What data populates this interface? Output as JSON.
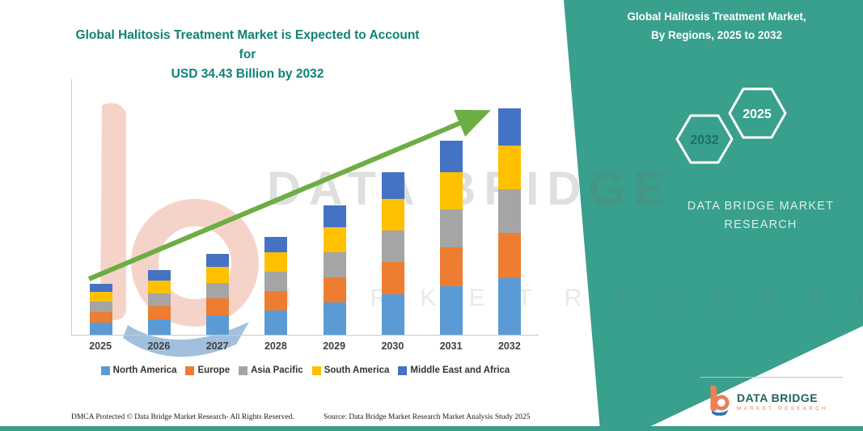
{
  "title": {
    "line1": "Global Halitosis Treatment Market is Expected to Account for",
    "line2": "USD 34.43 Billion by 2032"
  },
  "side_panel": {
    "heading_line1": "Global Halitosis Treatment Market,",
    "heading_line2": "By Regions, 2025 to 2032",
    "hex_back_label": "2032",
    "hex_front_label": "2025",
    "brand_line1": "DATA BRIDGE MARKET",
    "brand_line2": "RESEARCH",
    "panel_color": "#38A08C"
  },
  "watermark": {
    "line1": "DATA BRIDGE",
    "line2": "M A R K E T   R E S E A R C H"
  },
  "brand_logo": {
    "name": "DATA BRIDGE",
    "subtitle": "MARKET RESEARCH"
  },
  "footer": {
    "dmca": "DMCA Protected © Data Bridge Market Research-  All Rights Reserved.",
    "source": "Source: Data Bridge Market Research  Market Analysis Study 2025"
  },
  "chart_data": {
    "type": "bar",
    "stacked": true,
    "title": "Global Halitosis Treatment Market is Expected to Account for USD 34.43 Billion by 2032",
    "unit": "USD Billion",
    "categories": [
      "2025",
      "2026",
      "2027",
      "2028",
      "2029",
      "2030",
      "2031",
      "2032"
    ],
    "series": [
      {
        "name": "North America",
        "color": "#5B9BD5",
        "values": [
          1.9,
          2.4,
          3.0,
          3.7,
          4.9,
          6.2,
          7.4,
          8.6
        ]
      },
      {
        "name": "Europe",
        "color": "#ED7D31",
        "values": [
          1.6,
          2.0,
          2.5,
          3.0,
          3.9,
          4.9,
          5.9,
          6.9
        ]
      },
      {
        "name": "Asia Pacific",
        "color": "#A5A5A5",
        "values": [
          1.5,
          1.9,
          2.4,
          2.9,
          3.8,
          4.8,
          5.7,
          6.7
        ]
      },
      {
        "name": "South America",
        "color": "#FFC000",
        "values": [
          1.5,
          1.9,
          2.4,
          2.9,
          3.8,
          4.8,
          5.7,
          6.6
        ]
      },
      {
        "name": "Middle East and Africa",
        "color": "#4472C4",
        "values": [
          1.2,
          1.6,
          2.0,
          2.4,
          3.3,
          4.0,
          4.8,
          5.63
        ]
      }
    ],
    "totals": [
      7.7,
      9.8,
      12.3,
      14.9,
      19.7,
      24.7,
      29.5,
      34.43
    ],
    "ylim": [
      0,
      34.43
    ],
    "annotation": "USD 34.43 Billion by 2032",
    "legend_position": "bottom",
    "grid": false,
    "trend_arrow_color": "#6CAE44"
  }
}
